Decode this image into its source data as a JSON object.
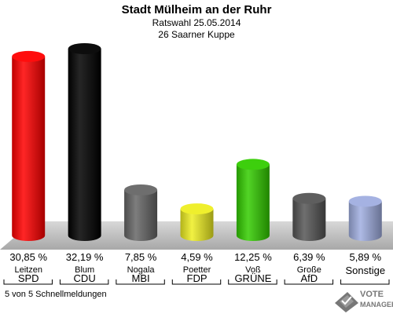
{
  "header": {
    "title": "Stadt Mülheim an der Ruhr",
    "line1": "Ratswahl 25.05.2014",
    "line2": "26 Saarner Kuppe"
  },
  "chart_data": {
    "type": "bar",
    "categories": [
      "SPD",
      "CDU",
      "MBI",
      "FDP",
      "GRÜNE",
      "AfD",
      "Sonstige"
    ],
    "candidates": [
      "Leitzen",
      "Blum",
      "Nogala",
      "Poetter",
      "Voß",
      "Große",
      ""
    ],
    "values": [
      30.85,
      32.19,
      7.85,
      4.59,
      12.25,
      6.39,
      5.89
    ],
    "value_labels": [
      "30,85 %",
      "32,19 %",
      "7,85 %",
      "4,59 %",
      "12,25 %",
      "6,39 %",
      "5,89 %"
    ],
    "colors": [
      "#ff0000",
      "#000000",
      "#666666",
      "#eeee22",
      "#33cc00",
      "#555555",
      "#a0aee0"
    ],
    "legend": "none",
    "grid": false
  },
  "footer": {
    "note": "5 von 5 Schnellmeldungen"
  },
  "logo": {
    "line1": "VOTE",
    "line2": "MANAGER"
  }
}
